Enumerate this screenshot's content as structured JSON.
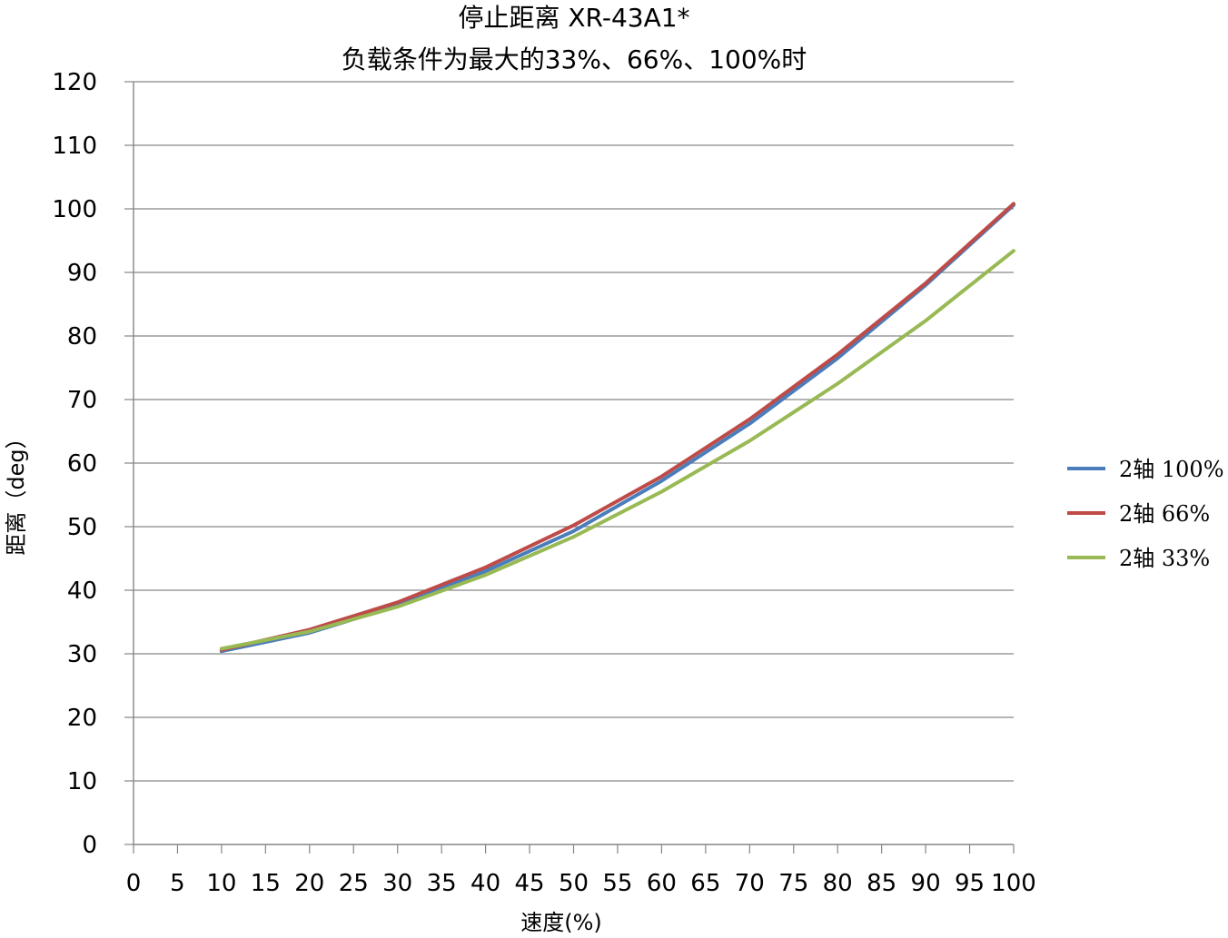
{
  "chart_data": {
    "type": "line",
    "title": "停止距离 XR-43A1*",
    "subtitle": "负载条件为最大的33%、66%、100%时",
    "xlabel": "速度(%)",
    "ylabel": "距离（deg）",
    "xlim": [
      0,
      100
    ],
    "ylim": [
      0,
      120
    ],
    "x_ticks": [
      "0",
      "5",
      "10",
      "15",
      "20",
      "25",
      "30",
      "35",
      "40",
      "45",
      "50",
      "55",
      "60",
      "65",
      "70",
      "75",
      "80",
      "85",
      "90",
      "95",
      "100"
    ],
    "y_ticks": [
      "0",
      "10",
      "20",
      "30",
      "40",
      "50",
      "60",
      "70",
      "80",
      "90",
      "100",
      "110",
      "120"
    ],
    "grid": "horizontal",
    "legend_position": "right",
    "x": [
      10,
      20,
      30,
      40,
      50,
      60,
      70,
      80,
      90,
      100
    ],
    "series": [
      {
        "name": "2轴 100%",
        "color": "#4a7ebb",
        "values": [
          30.4,
          33.3,
          37.6,
          43.0,
          49.3,
          57.2,
          66.2,
          76.5,
          88.0,
          100.6
        ]
      },
      {
        "name": "2轴 66%",
        "color": "#be4b48",
        "values": [
          30.6,
          33.8,
          38.1,
          43.6,
          50.2,
          57.9,
          66.9,
          77.1,
          88.3,
          100.8
        ]
      },
      {
        "name": "2轴 33%",
        "color": "#98b954",
        "values": [
          30.8,
          33.5,
          37.4,
          42.4,
          48.4,
          55.5,
          63.5,
          72.5,
          82.4,
          93.4
        ]
      }
    ]
  }
}
